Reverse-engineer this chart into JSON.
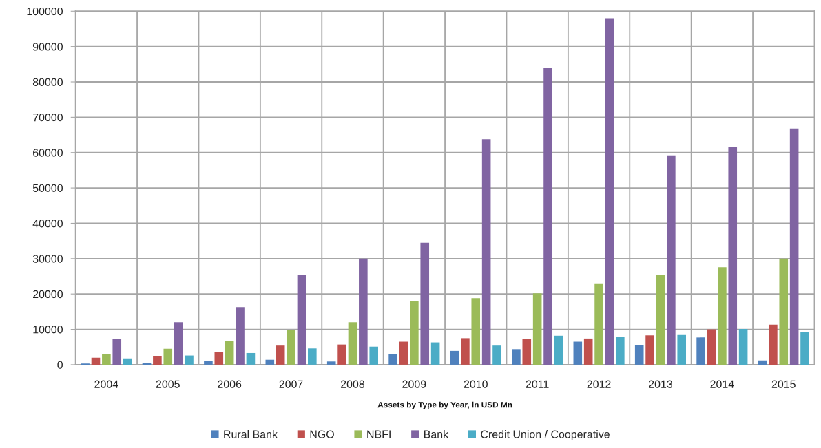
{
  "chart_data": {
    "type": "bar",
    "xlabel": "Assets by Type by Year, in USD Mn",
    "categories": [
      "2004",
      "2005",
      "2006",
      "2007",
      "2008",
      "2009",
      "2010",
      "2011",
      "2012",
      "2013",
      "2014",
      "2015"
    ],
    "series": [
      {
        "name": "Rural Bank",
        "color": "#4f81bd",
        "values": [
          300,
          400,
          1100,
          1400,
          900,
          3000,
          3900,
          4400,
          6500,
          5500,
          7700,
          1200
        ]
      },
      {
        "name": "NGO",
        "color": "#c0504d",
        "values": [
          2000,
          2400,
          3500,
          5400,
          5700,
          6500,
          7500,
          7200,
          7400,
          8300,
          10000,
          11300
        ]
      },
      {
        "name": "NBFI",
        "color": "#9bbb59",
        "values": [
          3000,
          4500,
          6600,
          9800,
          12000,
          17900,
          18800,
          20200,
          23000,
          25500,
          27600,
          30000
        ]
      },
      {
        "name": "Bank",
        "color": "#8064a2",
        "values": [
          7300,
          12000,
          16300,
          25500,
          30000,
          34500,
          63800,
          83900,
          98000,
          59200,
          61500,
          66800
        ]
      },
      {
        "name": "Credit Union / Cooperative",
        "color": "#4bacc6",
        "values": [
          1800,
          2600,
          3300,
          4600,
          5100,
          6300,
          5400,
          8200,
          7900,
          8400,
          10100,
          9200
        ]
      }
    ],
    "ylim": [
      0,
      100000
    ],
    "yticks": [
      0,
      10000,
      20000,
      30000,
      40000,
      50000,
      60000,
      70000,
      80000,
      90000,
      100000
    ],
    "grid": true,
    "legend": "bottom"
  }
}
